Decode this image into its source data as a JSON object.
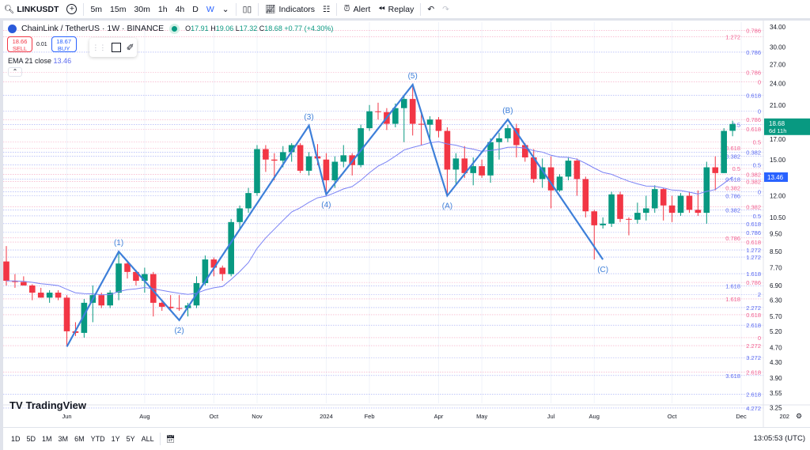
{
  "toolbar": {
    "symbol": "LINKUSDT",
    "intervals": [
      "5m",
      "15m",
      "30m",
      "1h",
      "4h",
      "D",
      "W"
    ],
    "active_interval": "W",
    "indicators": "Indicators",
    "alert": "Alert",
    "replay": "Replay"
  },
  "legend": {
    "title": "ChainLink / TetherUS · 1W · BINANCE",
    "o_label": "O",
    "o": "17.91",
    "h_label": "H",
    "h": "19.06",
    "l_label": "L",
    "l": "17.32",
    "c_label": "C",
    "c": "18.68",
    "change": "+0.77 (+4.30%)"
  },
  "trade": {
    "sell_price": "18.66",
    "sell_label": "SELL",
    "spread": "0.01",
    "buy_price": "18.67",
    "buy_label": "BUY"
  },
  "ema": {
    "label": "EMA 21 close",
    "value": "13.46"
  },
  "logo": "TradingView",
  "range_buttons": [
    "1D",
    "5D",
    "1M",
    "3M",
    "6M",
    "YTD",
    "1Y",
    "5Y",
    "ALL"
  ],
  "clock": "13:05:53 (UTC)",
  "colors": {
    "up": "#089981",
    "down": "#f23645",
    "ema": "#7b83f5",
    "wave": "#3d7fd9",
    "fib_red": "#f06292",
    "fib_blue": "#5c6bf0"
  },
  "chart_data": {
    "type": "candlestick",
    "scale": "log",
    "price_axis": [
      "34.00",
      "30.00",
      "27.00",
      "24.00",
      "21.00",
      "17.00",
      "15.00",
      "12.00",
      "10.50",
      "9.50",
      "8.50",
      "7.70",
      "6.90",
      "6.30",
      "5.70",
      "5.20",
      "4.70",
      "4.30",
      "3.90",
      "3.55",
      "3.25"
    ],
    "last_price": {
      "value": "18.68",
      "countdown": "6d 11h"
    },
    "ema_badge": "13.46",
    "time_axis": [
      {
        "label": "Jun",
        "bar": 8
      },
      {
        "label": "Aug",
        "bar": 17
      },
      {
        "label": "Oct",
        "bar": 25
      },
      {
        "label": "Nov",
        "bar": 30
      },
      {
        "label": "2024",
        "bar": 38
      },
      {
        "label": "Feb",
        "bar": 43
      },
      {
        "label": "Apr",
        "bar": 51
      },
      {
        "label": "May",
        "bar": 56
      },
      {
        "label": "Jul",
        "bar": 64
      },
      {
        "label": "Aug",
        "bar": 69
      },
      {
        "label": "Oct",
        "bar": 78
      },
      {
        "label": "Dec",
        "bar": 86
      },
      {
        "label": "202",
        "bar": 91
      }
    ],
    "candles": [
      [
        8.0,
        8.8,
        6.9,
        7.1
      ],
      [
        7.1,
        7.4,
        6.8,
        7.05
      ],
      [
        7.05,
        7.3,
        6.9,
        6.9
      ],
      [
        6.9,
        6.95,
        6.3,
        6.6
      ],
      [
        6.6,
        6.8,
        6.4,
        6.4
      ],
      [
        6.4,
        6.7,
        6.2,
        6.6
      ],
      [
        6.6,
        6.7,
        6.3,
        6.4
      ],
      [
        6.4,
        6.5,
        4.75,
        5.2
      ],
      [
        5.2,
        5.5,
        5.05,
        5.15
      ],
      [
        5.15,
        6.35,
        5.0,
        6.2
      ],
      [
        6.2,
        6.9,
        5.5,
        6.5
      ],
      [
        6.5,
        6.6,
        6.0,
        6.1
      ],
      [
        6.1,
        6.7,
        6.0,
        6.6
      ],
      [
        6.6,
        8.5,
        6.3,
        7.9
      ],
      [
        7.9,
        8.0,
        7.2,
        7.5
      ],
      [
        7.5,
        7.6,
        6.9,
        7.1
      ],
      [
        7.1,
        7.7,
        6.6,
        7.4
      ],
      [
        7.4,
        7.5,
        5.7,
        6.2
      ],
      [
        6.2,
        6.3,
        5.9,
        6.05
      ],
      [
        6.05,
        6.5,
        5.9,
        6.0
      ],
      [
        6.0,
        6.5,
        5.9,
        5.98
      ],
      [
        6.0,
        6.2,
        5.7,
        6.1
      ],
      [
        6.1,
        7.3,
        6.0,
        7.0
      ],
      [
        7.0,
        8.3,
        6.9,
        8.1
      ],
      [
        8.1,
        8.2,
        7.3,
        7.7
      ],
      [
        7.7,
        7.8,
        7.1,
        7.4
      ],
      [
        7.4,
        10.4,
        7.3,
        10.2
      ],
      [
        10.2,
        11.3,
        9.8,
        11.1
      ],
      [
        11.1,
        12.6,
        10.8,
        12.2
      ],
      [
        12.2,
        16.4,
        12.0,
        16.0
      ],
      [
        16.0,
        16.4,
        13.9,
        15.0
      ],
      [
        15.0,
        15.6,
        13.2,
        14.9
      ],
      [
        14.9,
        16.3,
        14.3,
        15.7
      ],
      [
        15.7,
        16.6,
        14.8,
        16.4
      ],
      [
        16.4,
        16.6,
        13.8,
        14.0
      ],
      [
        14.0,
        15.7,
        13.6,
        15.3
      ],
      [
        15.3,
        16.5,
        14.5,
        15.1
      ],
      [
        15.0,
        15.6,
        12.2,
        13.2
      ],
      [
        13.2,
        15.3,
        12.6,
        14.8
      ],
      [
        14.8,
        16.4,
        14.3,
        15.4
      ],
      [
        15.4,
        15.6,
        13.6,
        14.5
      ],
      [
        14.5,
        18.6,
        14.3,
        18.2
      ],
      [
        18.2,
        21.0,
        17.9,
        20.2
      ],
      [
        20.2,
        21.3,
        19.2,
        20.1
      ],
      [
        20.1,
        20.6,
        18.0,
        18.7
      ],
      [
        18.7,
        21.2,
        18.3,
        20.6
      ],
      [
        20.6,
        22.2,
        16.7,
        21.8
      ],
      [
        21.8,
        23.7,
        17.4,
        18.7
      ],
      [
        18.7,
        20.3,
        16.4,
        18.6
      ],
      [
        18.6,
        19.6,
        17.0,
        19.2
      ],
      [
        19.2,
        19.5,
        17.2,
        17.9
      ],
      [
        17.9,
        18.3,
        12.0,
        14.1
      ],
      [
        14.1,
        15.6,
        12.9,
        15.1
      ],
      [
        15.1,
        16.3,
        13.4,
        13.8
      ],
      [
        13.8,
        15.2,
        12.8,
        14.4
      ],
      [
        14.4,
        15.0,
        13.4,
        13.6
      ],
      [
        13.6,
        17.1,
        13.0,
        16.7
      ],
      [
        16.7,
        17.7,
        15.0,
        17.1
      ],
      [
        17.1,
        18.6,
        16.7,
        18.2
      ],
      [
        18.2,
        18.7,
        15.2,
        16.4
      ],
      [
        16.4,
        16.6,
        14.8,
        15.2
      ],
      [
        15.2,
        16.0,
        13.0,
        13.3
      ],
      [
        13.3,
        15.1,
        12.6,
        14.3
      ],
      [
        14.3,
        15.3,
        11.1,
        12.4
      ],
      [
        12.4,
        13.7,
        12.3,
        13.5
      ],
      [
        13.5,
        15.2,
        13.2,
        14.9
      ],
      [
        14.9,
        15.1,
        12.0,
        13.3
      ],
      [
        13.3,
        13.5,
        10.5,
        10.9
      ],
      [
        10.9,
        11.0,
        8.1,
        10.0
      ],
      [
        10.0,
        10.5,
        9.8,
        10.1
      ],
      [
        10.1,
        12.3,
        9.9,
        12.1
      ],
      [
        12.1,
        12.3,
        10.2,
        10.4
      ],
      [
        10.4,
        10.5,
        9.4,
        10.35
      ],
      [
        10.35,
        11.5,
        10.1,
        10.8
      ],
      [
        10.8,
        12.0,
        10.3,
        11.1
      ],
      [
        11.1,
        12.8,
        10.8,
        12.5
      ],
      [
        12.5,
        12.6,
        10.3,
        11.3
      ],
      [
        11.3,
        12.0,
        10.2,
        10.8
      ],
      [
        10.8,
        12.2,
        10.6,
        12.0
      ],
      [
        12.0,
        12.3,
        10.8,
        11.0
      ],
      [
        11.0,
        12.4,
        10.6,
        10.8
      ],
      [
        10.8,
        14.8,
        10.1,
        14.3
      ],
      [
        14.3,
        15.3,
        12.4,
        13.8
      ],
      [
        13.8,
        18.2,
        13.8,
        17.9
      ],
      [
        17.91,
        19.06,
        17.32,
        18.68
      ]
    ],
    "waves": [
      {
        "label": "",
        "bar": 8,
        "price": 4.73
      },
      {
        "label": "(1)",
        "bar": 14,
        "price": 8.5
      },
      {
        "label": "(2)",
        "bar": 21,
        "price": 5.57
      },
      {
        "label": "(3)",
        "bar": 36,
        "price": 18.5
      },
      {
        "label": "(4)",
        "bar": 38,
        "price": 12.1
      },
      {
        "label": "(5)",
        "bar": 48,
        "price": 23.8
      },
      {
        "label": "(A)",
        "bar": 52,
        "price": 12.0
      },
      {
        "label": "(B)",
        "bar": 59,
        "price": 19.2
      },
      {
        "label": "(C)",
        "bar": 70,
        "price": 8.1
      }
    ],
    "fib_levels": [
      {
        "t": "0.786",
        "p": 33.3,
        "c": "r"
      },
      {
        "t": "1.272",
        "p": 32.0,
        "c": "r"
      },
      {
        "t": "0.786",
        "p": 29.1,
        "c": "b"
      },
      {
        "t": "0.786",
        "p": 25.7,
        "c": "r"
      },
      {
        "t": "0",
        "p": 24.2,
        "c": "r"
      },
      {
        "t": "0.618",
        "p": 22.3,
        "c": "b"
      },
      {
        "t": "0",
        "p": 20.2,
        "c": "b"
      },
      {
        "t": "0.786",
        "p": 19.2,
        "c": "r"
      },
      {
        "t": "0.5",
        "p": 18.6,
        "c": "b"
      },
      {
        "t": "0.618",
        "p": 18.1,
        "c": "r"
      },
      {
        "t": "0.5",
        "p": 16.7,
        "c": "r"
      },
      {
        "t": "0.618",
        "p": 16.1,
        "c": "r"
      },
      {
        "t": "0.382",
        "p": 15.7,
        "c": "b"
      },
      {
        "t": "0.382",
        "p": 15.3,
        "c": "b"
      },
      {
        "t": "0.5",
        "p": 14.5,
        "c": "b"
      },
      {
        "t": "0.5",
        "p": 14.2,
        "c": "r"
      },
      {
        "t": "0.382",
        "p": 13.7,
        "c": "r"
      },
      {
        "t": "0.618",
        "p": 13.3,
        "c": "b"
      },
      {
        "t": "0.382",
        "p": 13.1,
        "c": "r"
      },
      {
        "t": "0.382",
        "p": 12.6,
        "c": "r"
      },
      {
        "t": "0",
        "p": 12.3,
        "c": "b"
      },
      {
        "t": "0.786",
        "p": 12.0,
        "c": "b"
      },
      {
        "t": "0.382",
        "p": 11.2,
        "c": "r"
      },
      {
        "t": "0.382",
        "p": 11.0,
        "c": "b"
      },
      {
        "t": "0.5",
        "p": 10.6,
        "c": "b"
      },
      {
        "t": "0.618",
        "p": 10.1,
        "c": "b"
      },
      {
        "t": "0.786",
        "p": 9.57,
        "c": "b"
      },
      {
        "t": "0.786",
        "p": 9.25,
        "c": "r"
      },
      {
        "t": "0.618",
        "p": 9.02,
        "c": "r"
      },
      {
        "t": "1.272",
        "p": 8.59,
        "c": "b"
      },
      {
        "t": "1.272",
        "p": 8.22,
        "c": "b"
      },
      {
        "t": "1.618",
        "p": 7.42,
        "c": "b"
      },
      {
        "t": "0.786",
        "p": 7.03,
        "c": "r"
      },
      {
        "t": "1.618",
        "p": 6.88,
        "c": "b"
      },
      {
        "t": "2",
        "p": 6.53,
        "c": "b"
      },
      {
        "t": "1.618",
        "p": 6.35,
        "c": "r"
      },
      {
        "t": "2.272",
        "p": 6.02,
        "c": "b"
      },
      {
        "t": "0.618",
        "p": 5.76,
        "c": "r"
      },
      {
        "t": "2.618",
        "p": 5.4,
        "c": "b"
      },
      {
        "t": "0",
        "p": 5.0,
        "c": "r"
      },
      {
        "t": "2.272",
        "p": 4.76,
        "c": "r"
      },
      {
        "t": "3.272",
        "p": 4.42,
        "c": "b"
      },
      {
        "t": "2.618",
        "p": 4.04,
        "c": "r"
      },
      {
        "t": "3.618",
        "p": 3.96,
        "c": "b"
      },
      {
        "t": "2.618",
        "p": 3.53,
        "c": "b"
      },
      {
        "t": "4.272",
        "p": 3.24,
        "c": "b"
      }
    ]
  }
}
